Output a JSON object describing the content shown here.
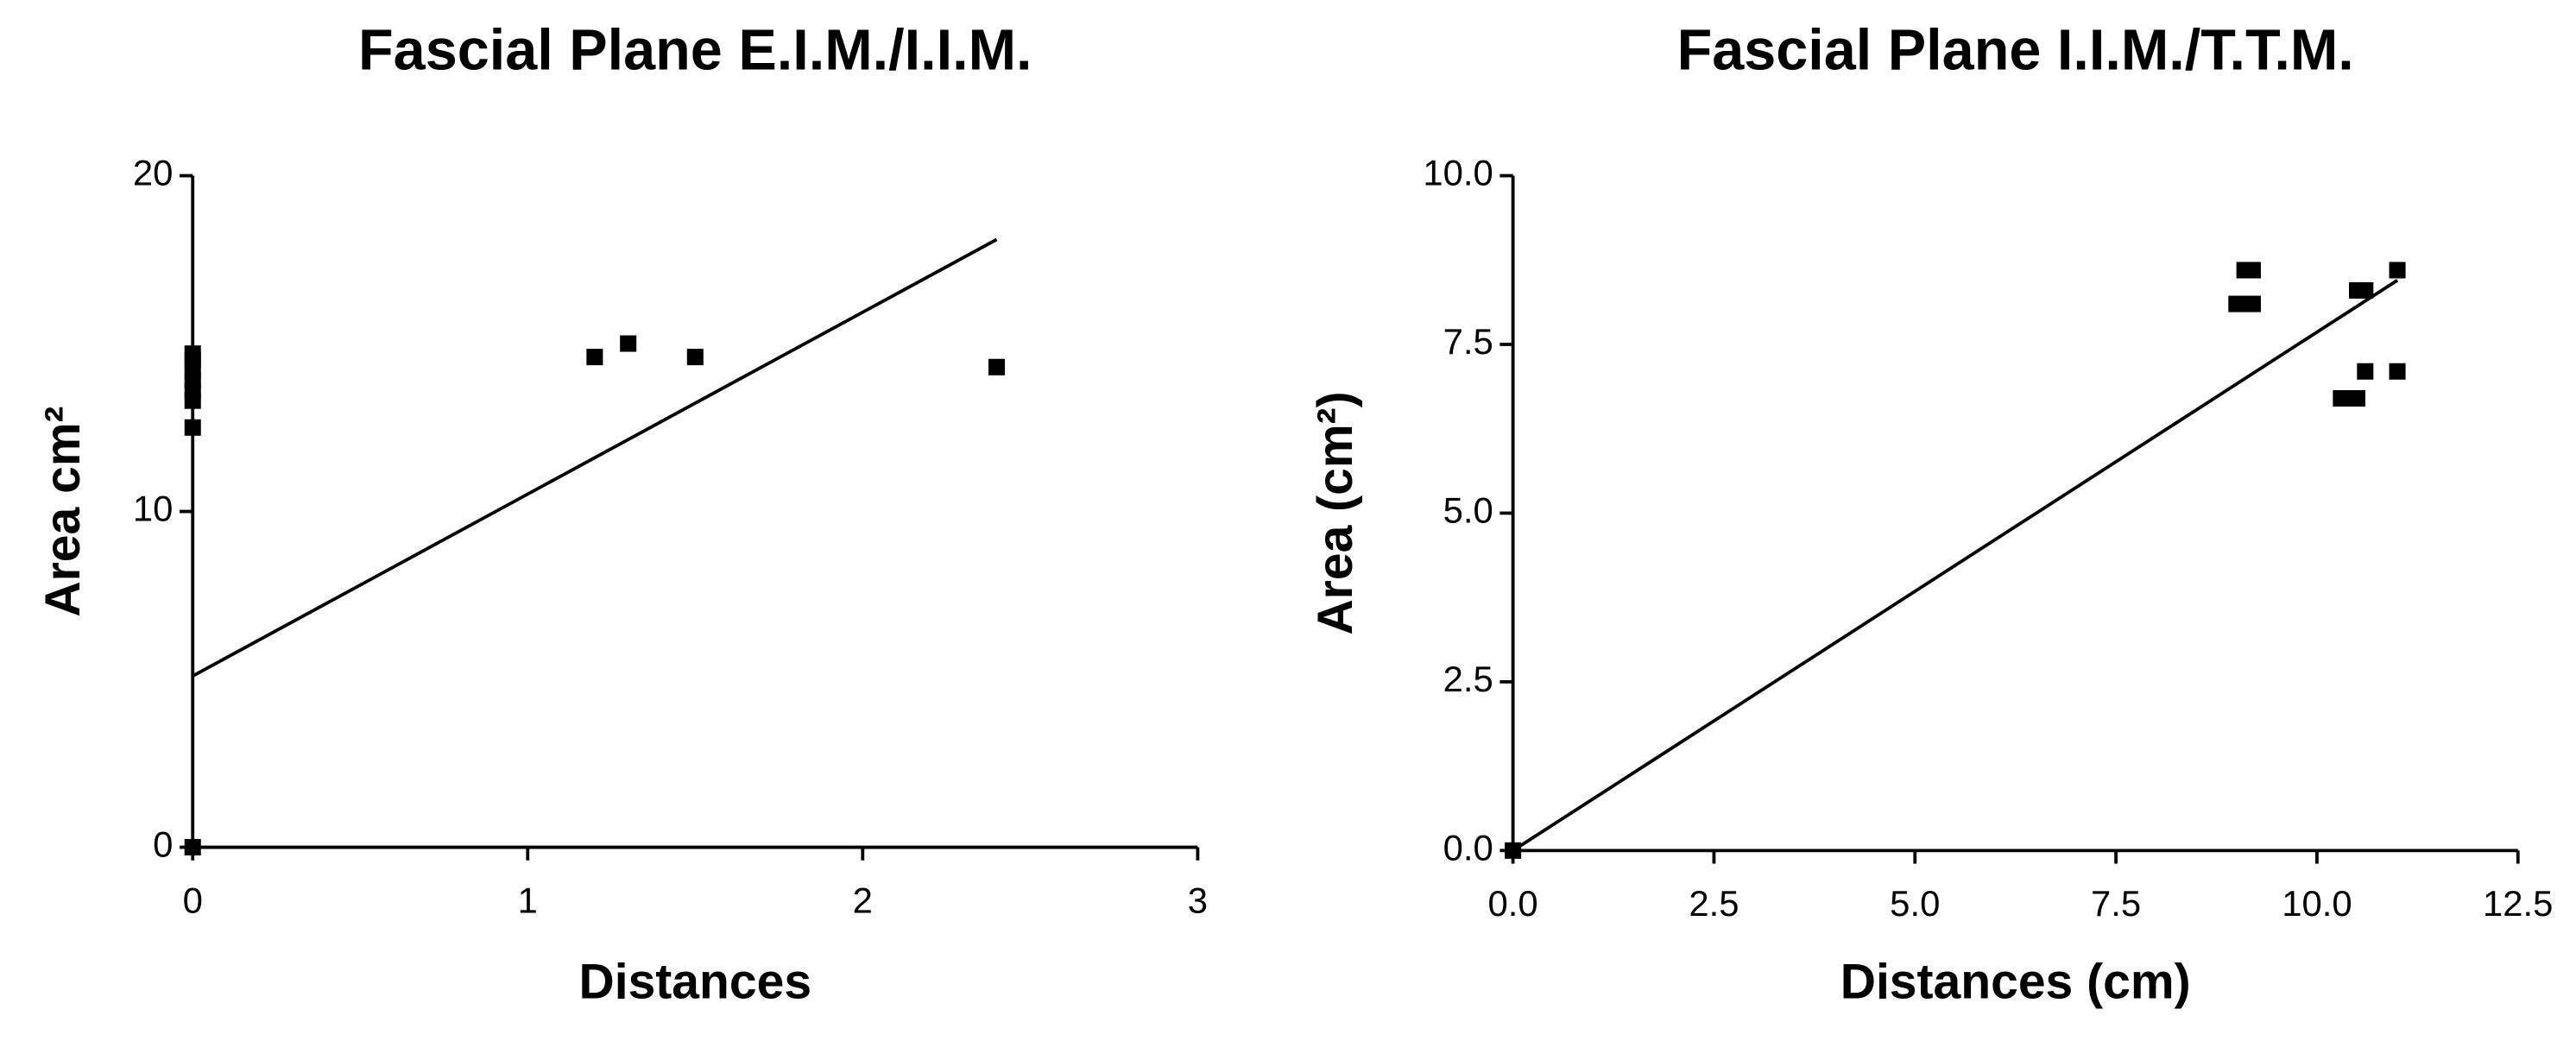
{
  "chart_data": [
    {
      "type": "scatter",
      "title": "Fascial Plane E.I.M./I.I.M.",
      "xlabel": "Distances",
      "ylabel": "Area cm²",
      "xlim": [
        0,
        3
      ],
      "ylim": [
        0,
        20
      ],
      "xticks": [
        0,
        1,
        2,
        3
      ],
      "yticks": [
        0,
        10,
        20
      ],
      "series": [
        {
          "color": "#000000",
          "x": [
            0,
            0,
            0,
            0,
            0,
            0,
            0,
            0,
            1.2,
            1.3,
            1.5,
            2.4
          ],
          "values": [
            0,
            12.5,
            13.3,
            13.6,
            13.9,
            14.2,
            14.5,
            14.7,
            14.6,
            15.0,
            14.6,
            14.3
          ]
        }
      ],
      "fit": {
        "color": "#000000",
        "x": [
          0,
          2.4
        ],
        "values": [
          5.1,
          18.1
        ]
      }
    },
    {
      "type": "scatter",
      "title": "Fascial Plane I.I.M./T.T.M.",
      "xlabel": "Distances (cm)",
      "ylabel": "Area (cm²)",
      "xlim": [
        0,
        12.5
      ],
      "ylim": [
        0,
        10
      ],
      "xticks": [
        {
          "value": 0,
          "label": "0.0"
        },
        2.5,
        {
          "value": 5,
          "label": "5.0"
        },
        7.5,
        {
          "value": 10,
          "label": "10.0"
        },
        12.5
      ],
      "yticks": [
        {
          "value": 0,
          "label": "0.0"
        },
        2.5,
        {
          "value": 5,
          "label": "5.0"
        },
        7.5,
        {
          "value": 10,
          "label": "10.0"
        }
      ],
      "series": [
        {
          "color": "#000000",
          "x": [
            0,
            9.0,
            9.2,
            9.1,
            9.2,
            10.5,
            10.6,
            10.3,
            10.5,
            10.6,
            11.0,
            11.0
          ],
          "values": [
            0,
            8.1,
            8.1,
            8.6,
            8.6,
            8.3,
            8.3,
            6.7,
            6.7,
            7.1,
            7.1,
            8.6
          ]
        }
      ],
      "fit": {
        "color": "#000000",
        "x": [
          0,
          11.0
        ],
        "values": [
          0,
          8.45
        ]
      }
    }
  ]
}
